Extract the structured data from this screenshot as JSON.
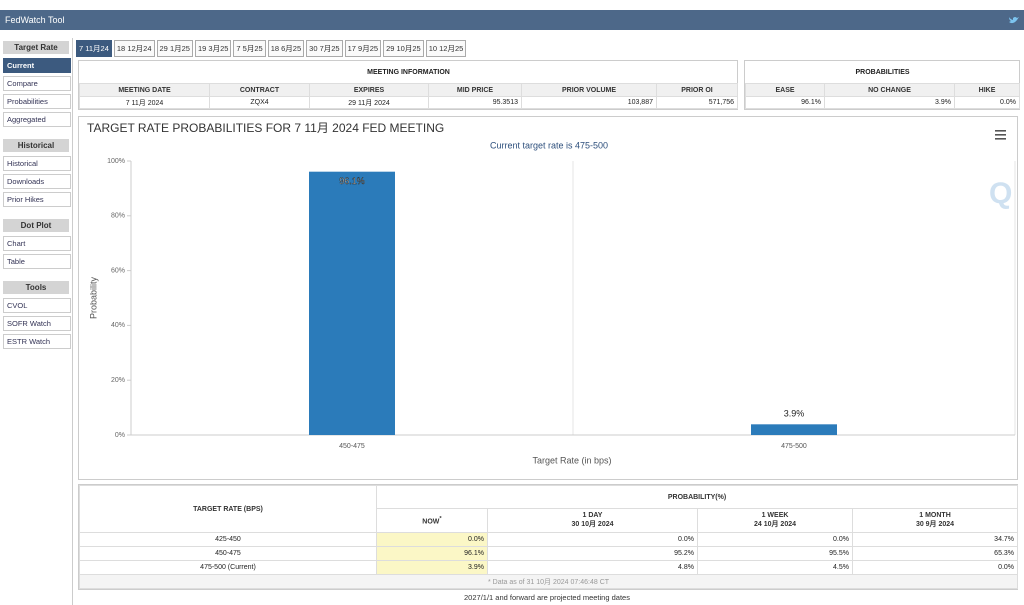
{
  "header": {
    "title": "FedWatch Tool"
  },
  "sidebar": {
    "sections": [
      {
        "title": "Target Rate",
        "items": [
          "Current",
          "Compare",
          "Probabilities",
          "Aggregated"
        ]
      },
      {
        "title": "Historical",
        "items": [
          "Historical",
          "Downloads",
          "Prior Hikes"
        ]
      },
      {
        "title": "Dot Plot",
        "items": [
          "Chart",
          "Table"
        ]
      },
      {
        "title": "Tools",
        "items": [
          "CVOL",
          "SOFR Watch",
          "ESTR Watch"
        ]
      }
    ]
  },
  "tabs": [
    "7 11月24",
    "18 12月24",
    "29 1月25",
    "19 3月25",
    "7 5月25",
    "18 6月25",
    "30 7月25",
    "17 9月25",
    "29 10月25",
    "10 12月25"
  ],
  "meeting_info": {
    "title": "MEETING INFORMATION",
    "headers": [
      "MEETING DATE",
      "CONTRACT",
      "EXPIRES",
      "MID PRICE",
      "PRIOR VOLUME",
      "PRIOR OI"
    ],
    "row": [
      "7 11月 2024",
      "ZQX4",
      "29 11月 2024",
      "95.3513",
      "103,887",
      "571,756"
    ]
  },
  "probabilities": {
    "title": "PROBABILITIES",
    "headers": [
      "EASE",
      "NO CHANGE",
      "HIKE"
    ],
    "row": [
      "96.1%",
      "3.9%",
      "0.0%"
    ]
  },
  "chart_data": {
    "type": "bar",
    "title": "TARGET RATE PROBABILITIES FOR 7 11月 2024 FED MEETING",
    "subtitle": "Current target rate is 475-500",
    "x_label": "Target Rate (in bps)",
    "y_label": "Probability",
    "categories": [
      "450-475",
      "475-500"
    ],
    "values": [
      96.1,
      3.9
    ],
    "value_labels": [
      "96.1%",
      "3.9%"
    ],
    "color": "#2b7bba",
    "ylim": [
      0,
      100
    ],
    "yticks": [
      {
        "value": 0,
        "label": "0%"
      },
      {
        "value": 20,
        "label": "20%"
      },
      {
        "value": 40,
        "label": "40%"
      },
      {
        "value": 60,
        "label": "60%"
      },
      {
        "value": 80,
        "label": "80%"
      },
      {
        "value": 100,
        "label": "100%"
      }
    ]
  },
  "rate_table": {
    "row_header": "TARGET RATE (BPS)",
    "group_header": "PROBABILITY(%)",
    "columns": [
      {
        "label": "NOW",
        "mark": "*"
      },
      {
        "label": "1 DAY",
        "date": "30 10月 2024"
      },
      {
        "label": "1 WEEK",
        "date": "24 10月 2024"
      },
      {
        "label": "1 MONTH",
        "date": "30 9月 2024"
      }
    ],
    "rows": [
      [
        "425-450",
        "0.0%",
        "0.0%",
        "0.0%",
        "34.7%"
      ],
      [
        "450-475",
        "96.1%",
        "95.2%",
        "95.5%",
        "65.3%"
      ],
      [
        "475-500 (Current)",
        "3.9%",
        "4.8%",
        "4.5%",
        "0.0%"
      ]
    ],
    "footnote": "* Data as of 31 10月 2024 07:46:48 CT"
  },
  "note": "2027/1/1 and forward are projected meeting dates"
}
